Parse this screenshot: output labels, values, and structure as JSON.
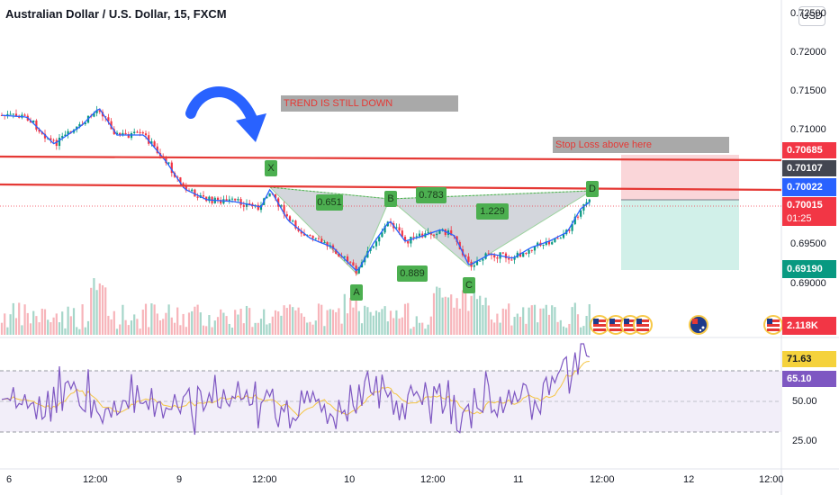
{
  "header": {
    "title": "Australian Dollar / U.S. Dollar, 15, FXCM",
    "currency_button": "USD"
  },
  "price_axis": {
    "ticks": [
      "0.72500",
      "0.72000",
      "0.71500",
      "0.71000",
      "0.69500",
      "0.69000"
    ],
    "tags": [
      {
        "label": "0.70685",
        "color": "#f23645"
      },
      {
        "label": "0.70107",
        "color": "#434651"
      },
      {
        "label": "0.70022",
        "color": "#2962ff"
      },
      {
        "label": "0.70015",
        "sub": "01:25",
        "color": "#f23645"
      },
      {
        "label": "0.69190",
        "color": "#089981"
      },
      {
        "label": "2.118K",
        "color": "#f23645"
      }
    ]
  },
  "rsi_axis": {
    "ticks": [
      "50.00",
      "25.00"
    ],
    "tags": [
      {
        "label": "71.63",
        "color": "#f5d23c"
      },
      {
        "label": "65.10",
        "color": "#7e57c2"
      }
    ]
  },
  "time_axis": [
    "6",
    "12:00",
    "9",
    "12:00",
    "10",
    "12:00",
    "11",
    "12:00",
    "12",
    "12:00"
  ],
  "annotations": {
    "trend_note": "TREND IS STILL DOWN",
    "stop_note": "Stop Loss above here",
    "points": [
      "X",
      "A",
      "B",
      "C",
      "D"
    ],
    "ratios": [
      "0.651",
      "0.783",
      "1.229",
      "0.889"
    ]
  },
  "colors": {
    "resistance": "#e53935",
    "candle_up": "#089981",
    "candle_down": "#f23645",
    "moving_average": "#2962ff",
    "rsi_line": "#7e57c2",
    "rsi_ma": "#f5c542",
    "pattern_fill": "#b0b5c0",
    "pattern_label": "#4caf50",
    "stop_zone": "#f8c8cc",
    "target_zone": "#c6ece3"
  },
  "icons": [
    "arrow-annotation-icon",
    "us-flag-event-icon",
    "australia-flag-event-icon",
    "us-flag-event-icon"
  ]
}
